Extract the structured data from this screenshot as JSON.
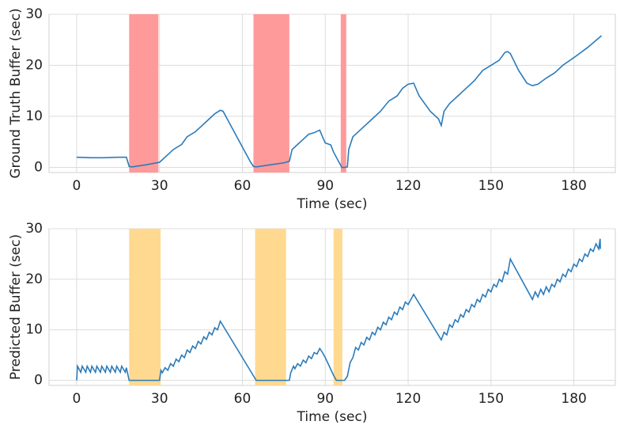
{
  "chart_data": [
    {
      "type": "line",
      "color": "#2b7bba",
      "xlabel": "Time (sec)",
      "ylabel": "Ground Truth Buffer (sec)",
      "xlim": [
        -10,
        195
      ],
      "ylim": [
        -1,
        30
      ],
      "xticks": [
        0,
        30,
        60,
        90,
        120,
        150,
        180
      ],
      "yticks": [
        0,
        10,
        20,
        30
      ],
      "grid": true,
      "span_color": "#ff9a9a",
      "spans": [
        {
          "start": 19,
          "end": 29.6
        },
        {
          "start": 64,
          "end": 77
        },
        {
          "start": 95.6,
          "end": 97.6
        }
      ],
      "x": [
        0,
        5,
        10,
        15,
        18,
        19,
        20,
        25,
        30,
        31,
        33,
        35,
        38,
        40,
        43,
        45,
        48,
        50,
        52,
        53,
        55,
        58,
        61,
        63,
        64,
        65,
        70,
        75,
        77,
        78,
        80,
        82,
        84,
        86,
        88,
        89,
        90,
        92,
        93,
        95,
        96,
        97,
        98,
        98.5,
        100,
        103,
        106,
        110,
        113,
        116,
        118,
        120,
        122,
        124,
        128,
        131,
        132,
        133,
        135,
        138,
        141,
        144,
        147,
        150,
        153,
        155,
        156,
        157,
        160,
        163,
        165,
        167,
        170,
        173,
        176,
        180,
        185,
        190
      ],
      "values": [
        2,
        1.9,
        1.9,
        2,
        2,
        0.2,
        0.1,
        0.5,
        1,
        1.5,
        2.5,
        3.5,
        4.5,
        6,
        7,
        8,
        9.5,
        10.5,
        11.2,
        11,
        9,
        6,
        3,
        1,
        0.2,
        0.1,
        0.5,
        0.9,
        1.2,
        3.5,
        4.5,
        5.5,
        6.5,
        6.8,
        7.3,
        6,
        4.8,
        4.4,
        3,
        1,
        0,
        0,
        0.1,
        3.5,
        6,
        7.5,
        9,
        11,
        13,
        14,
        15.5,
        16.3,
        16.5,
        14,
        11,
        9.5,
        8.2,
        11,
        12.5,
        14,
        15.5,
        17,
        19,
        20,
        21,
        22.5,
        22.7,
        22.3,
        19,
        16.5,
        16,
        16.3,
        17.5,
        18.5,
        20,
        21.5,
        23.5,
        25.8
      ]
    },
    {
      "type": "line",
      "color": "#2b7bba",
      "xlabel": "Time (sec)",
      "ylabel": "Predicted Buffer (sec)",
      "xlim": [
        -10,
        195
      ],
      "ylim": [
        -1,
        30
      ],
      "xticks": [
        0,
        30,
        60,
        90,
        120,
        150,
        180
      ],
      "yticks": [
        0,
        10,
        20,
        30
      ],
      "grid": true,
      "span_color": "#ffd990",
      "spans": [
        {
          "start": 19,
          "end": 30.4
        },
        {
          "start": 64.6,
          "end": 75.8
        },
        {
          "start": 93,
          "end": 96.2
        }
      ],
      "x": [
        0,
        0.3,
        1.5,
        2,
        3.3,
        3.8,
        5,
        5.5,
        6.8,
        7.3,
        8.6,
        9.1,
        10.4,
        10.9,
        12.2,
        12.7,
        14,
        14.5,
        15.8,
        16.3,
        17.6,
        18,
        19,
        30,
        30.5,
        31,
        32,
        33,
        34,
        35,
        36,
        37,
        38,
        39,
        40,
        41,
        42,
        43,
        44,
        45,
        46,
        47,
        48,
        49,
        50,
        51,
        52,
        65,
        77,
        77.5,
        78.5,
        79,
        80,
        81,
        82,
        83,
        84,
        85,
        86,
        87,
        88,
        89,
        90,
        93,
        94,
        97,
        98,
        99,
        100,
        101,
        102,
        103,
        104,
        105,
        106,
        107,
        108,
        109,
        110,
        111,
        112,
        113,
        114,
        115,
        116,
        117,
        118,
        119,
        120,
        122,
        132,
        133,
        134,
        135,
        136,
        137,
        138,
        139,
        140,
        141,
        142,
        143,
        144,
        145,
        146,
        147,
        148,
        149,
        150,
        151,
        152,
        153,
        154,
        155,
        156,
        157,
        165,
        166,
        167,
        168,
        169,
        170,
        171,
        172,
        173,
        174,
        175,
        176,
        177,
        178,
        179,
        180,
        181,
        182,
        183,
        184,
        185,
        186,
        187,
        188,
        189,
        189.5,
        189.6
      ],
      "values": [
        0,
        2.8,
        1.6,
        2.8,
        1.6,
        2.8,
        1.6,
        2.8,
        1.6,
        2.8,
        1.6,
        2.8,
        1.6,
        2.8,
        1.6,
        2.8,
        1.6,
        2.8,
        1.6,
        2.8,
        1.6,
        2.5,
        0,
        0,
        2,
        1.5,
        2.5,
        2,
        3.3,
        2.8,
        4.2,
        3.7,
        5,
        4.5,
        6,
        5.5,
        6.8,
        6.3,
        7.7,
        7.2,
        8.6,
        8.1,
        9.5,
        9,
        10.4,
        10,
        11.7,
        0,
        0,
        1.5,
        2.8,
        2.3,
        3.3,
        2.8,
        4,
        3.5,
        4.8,
        4.3,
        5.5,
        5.2,
        6.3,
        5.5,
        4.5,
        1,
        0,
        0,
        0.8,
        3.5,
        4.5,
        6.5,
        6,
        7.5,
        7,
        8.5,
        8,
        9.5,
        9,
        10.5,
        10,
        11.5,
        11,
        12.5,
        12,
        13.5,
        13,
        14.5,
        14,
        15.5,
        15,
        17,
        8,
        9.5,
        9,
        11,
        10.5,
        12,
        11.5,
        13,
        12.5,
        14,
        13.5,
        15,
        14.5,
        16,
        15.5,
        17,
        16.5,
        18,
        17.5,
        19,
        18.5,
        20,
        19.5,
        21.5,
        21,
        24,
        16,
        17.5,
        16.5,
        18,
        17,
        18.5,
        17.5,
        19,
        18.5,
        20,
        19.5,
        21,
        20.5,
        22,
        21.5,
        23,
        22.5,
        24,
        23.5,
        25,
        24.5,
        26,
        25.5,
        27,
        26,
        28,
        26
      ]
    }
  ]
}
